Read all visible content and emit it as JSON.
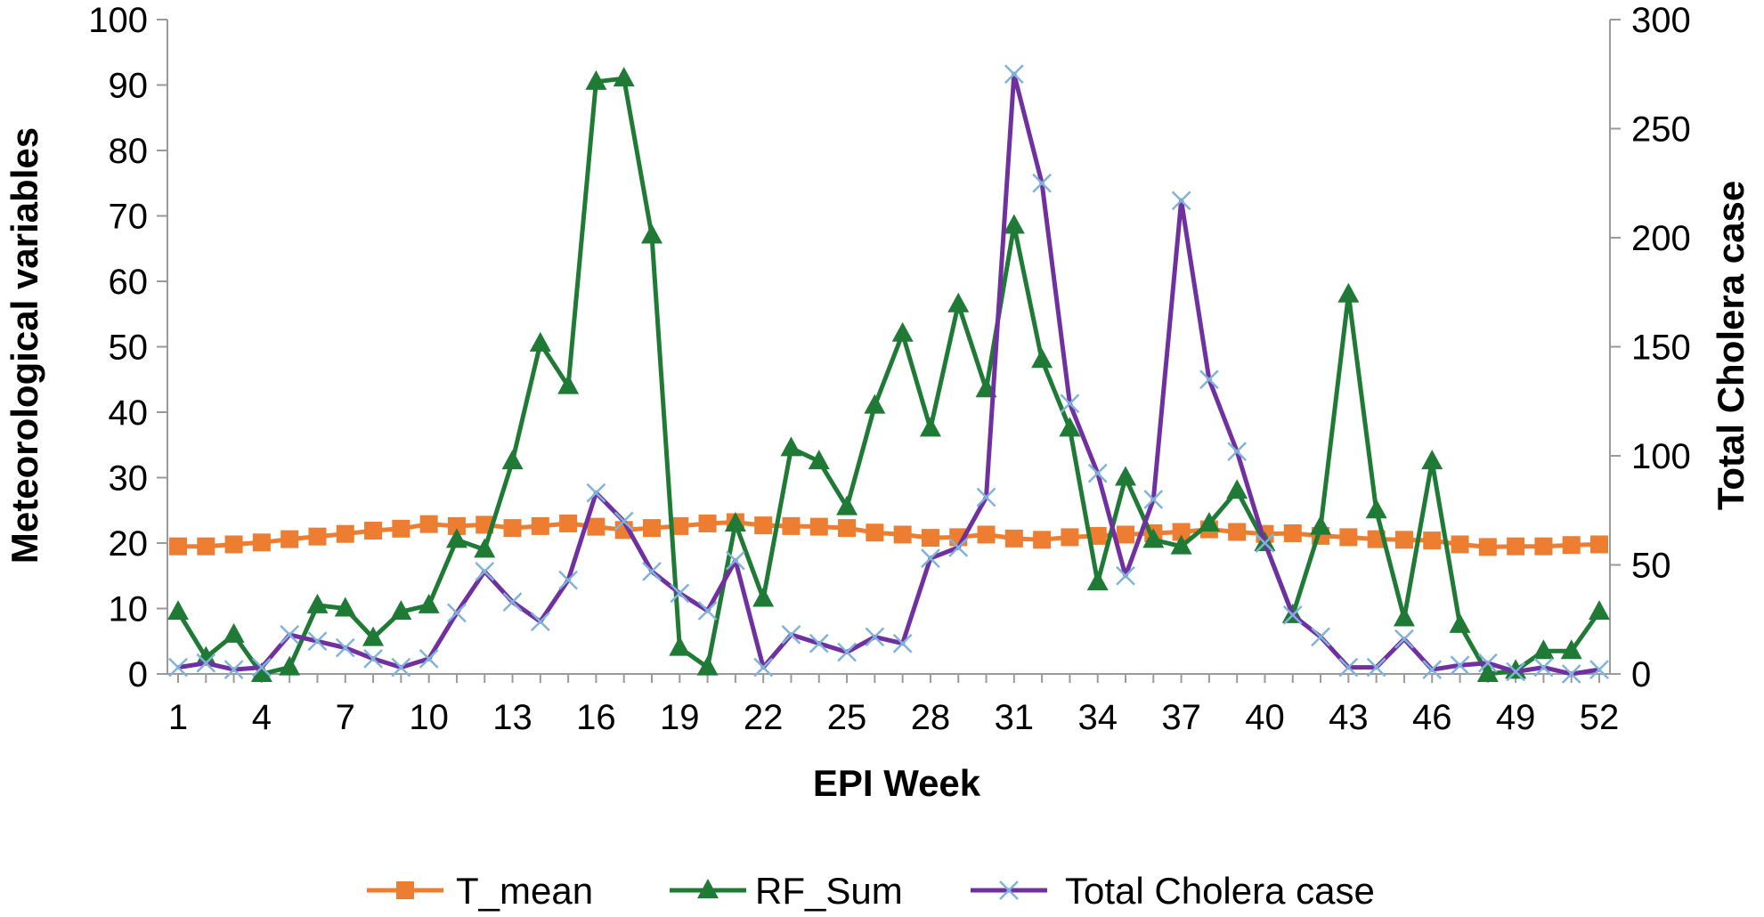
{
  "chart_data": {
    "type": "line",
    "xlabel": "EPI Week",
    "ylabel": "Meteorological variables",
    "y2label": "Total Cholera case",
    "ylim": [
      0,
      100
    ],
    "y2lim": [
      0,
      300
    ],
    "yticks": [
      0,
      10,
      20,
      30,
      40,
      50,
      60,
      70,
      80,
      90,
      100
    ],
    "y2ticks": [
      0,
      50,
      100,
      150,
      200,
      250,
      300
    ],
    "xticks": [
      1,
      4,
      7,
      10,
      13,
      16,
      19,
      22,
      25,
      28,
      31,
      34,
      37,
      40,
      43,
      46,
      49,
      52
    ],
    "x": [
      1,
      2,
      3,
      4,
      5,
      6,
      7,
      8,
      9,
      10,
      11,
      12,
      13,
      14,
      15,
      16,
      17,
      18,
      19,
      20,
      21,
      22,
      23,
      24,
      25,
      26,
      27,
      28,
      29,
      30,
      31,
      32,
      33,
      34,
      35,
      36,
      37,
      38,
      39,
      40,
      41,
      42,
      43,
      44,
      45,
      46,
      47,
      48,
      49,
      50,
      51,
      52
    ],
    "legend_position": "bottom",
    "series": [
      {
        "name": "T_mean",
        "axis": "left",
        "color": "#ED7D31",
        "marker": "square",
        "values": [
          19.5,
          19.5,
          19.8,
          20.1,
          20.6,
          21.0,
          21.4,
          21.9,
          22.2,
          22.9,
          22.6,
          22.8,
          22.3,
          22.6,
          23.0,
          22.5,
          22.0,
          22.3,
          22.6,
          23.0,
          23.2,
          22.7,
          22.6,
          22.5,
          22.3,
          21.6,
          21.3,
          20.8,
          20.9,
          21.3,
          20.7,
          20.5,
          20.9,
          21.1,
          21.3,
          21.5,
          21.7,
          22.1,
          21.7,
          21.4,
          21.5,
          21.1,
          20.9,
          20.6,
          20.5,
          20.4,
          19.8,
          19.4,
          19.5,
          19.5,
          19.7,
          19.8
        ]
      },
      {
        "name": "RF_Sum",
        "axis": "left",
        "color": "#1F7A36",
        "marker": "triangle",
        "values": [
          9.5,
          2.5,
          6,
          0,
          1,
          10.5,
          10,
          5.5,
          9.5,
          10.5,
          20.5,
          19,
          32.5,
          50.5,
          44,
          90.5,
          91,
          67,
          4,
          1,
          23,
          11.5,
          34.5,
          32.5,
          25.5,
          41,
          52,
          37.5,
          56.5,
          43.5,
          68.5,
          48,
          37.5,
          14,
          30,
          20.5,
          19.5,
          23,
          28,
          20,
          9,
          22.5,
          58,
          25,
          8.5,
          32.5,
          7.5,
          0,
          0.5,
          3.5,
          3.5,
          9.5
        ]
      },
      {
        "name": "Total Cholera case",
        "axis": "right",
        "color": "#7030A0",
        "marker": "x",
        "values": [
          3,
          5,
          2,
          3,
          18,
          15,
          12,
          7,
          3,
          7,
          28,
          47,
          33,
          24,
          43,
          83,
          70,
          47,
          37,
          29,
          52,
          3,
          18,
          14,
          10,
          17,
          14,
          53,
          58,
          81,
          275,
          225,
          124,
          92,
          45,
          80,
          217,
          135,
          102,
          60,
          27,
          17,
          3,
          3,
          16,
          2,
          4,
          5,
          1,
          3,
          0,
          2
        ]
      }
    ]
  }
}
